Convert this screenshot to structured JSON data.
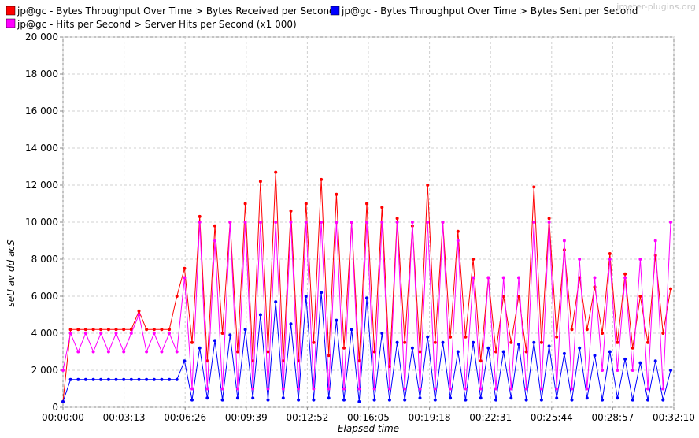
{
  "watermark": "jmeter-plugins.org",
  "chart_data": {
    "type": "line",
    "xlabel": "Elapsed time",
    "ylabel": "seU av dd acS",
    "ylim": [
      0,
      20000
    ],
    "xlim": [
      "00:00:00",
      "00:32:10"
    ],
    "grid": true,
    "legend_position": "top",
    "y_ticks": [
      "0",
      "2 000",
      "4 000",
      "6 000",
      "8 000",
      "10 000",
      "12 000",
      "14 000",
      "16 000",
      "18 000",
      "20 000"
    ],
    "x_ticks": [
      "00:00:00",
      "00:03:13",
      "00:06:26",
      "00:09:39",
      "00:12:52",
      "00:16:05",
      "00:19:18",
      "00:22:31",
      "00:25:44",
      "00:28:57",
      "00:32:10"
    ],
    "x_unit": "elapsed seconds",
    "series": [
      {
        "name": "jp@gc - Bytes Throughput Over Time > Bytes Received per Second",
        "color": "#ff0000",
        "x": [
          0,
          24,
          48,
          72,
          96,
          120,
          144,
          168,
          192,
          216,
          240,
          264,
          288,
          312,
          336,
          360,
          384,
          408,
          432,
          456,
          480,
          504,
          528,
          552,
          576,
          600,
          624,
          648,
          672,
          696,
          720,
          744,
          768,
          792,
          816,
          840,
          864,
          888,
          912,
          936,
          960,
          984,
          1008,
          1032,
          1056,
          1080,
          1104,
          1128,
          1152,
          1176,
          1200,
          1224,
          1248,
          1272,
          1296,
          1320,
          1344,
          1368,
          1392,
          1416,
          1440,
          1464,
          1488,
          1512,
          1536,
          1560,
          1584,
          1608,
          1632,
          1656,
          1680,
          1704,
          1728,
          1752,
          1776,
          1800,
          1824,
          1848,
          1872,
          1896,
          1920
        ],
        "values": [
          300,
          4200,
          4200,
          4200,
          4200,
          4200,
          4200,
          4200,
          4200,
          4200,
          5200,
          4200,
          4200,
          4200,
          4200,
          6000,
          7500,
          3500,
          10300,
          2500,
          9800,
          4000,
          10000,
          3000,
          11000,
          2500,
          12200,
          3000,
          12700,
          2500,
          10600,
          2500,
          11000,
          3500,
          12300,
          2800,
          11500,
          3200,
          10000,
          2500,
          11000,
          3000,
          10800,
          2200,
          10200,
          3500,
          9800,
          3000,
          12000,
          3500,
          10000,
          3800,
          9500,
          3800,
          8000,
          2500,
          7000,
          3000,
          6000,
          3500,
          6000,
          3000,
          11900,
          3500,
          10200,
          3800,
          8500,
          4200,
          7000,
          4200,
          6500,
          4000,
          8300,
          3500,
          7200,
          3200,
          6000,
          3500,
          8200,
          4000,
          6400
        ]
      },
      {
        "name": "jp@gc - Bytes Throughput Over Time > Bytes Sent per Second",
        "color": "#0000ff",
        "x": [
          0,
          24,
          48,
          72,
          96,
          120,
          144,
          168,
          192,
          216,
          240,
          264,
          288,
          312,
          336,
          360,
          384,
          408,
          432,
          456,
          480,
          504,
          528,
          552,
          576,
          600,
          624,
          648,
          672,
          696,
          720,
          744,
          768,
          792,
          816,
          840,
          864,
          888,
          912,
          936,
          960,
          984,
          1008,
          1032,
          1056,
          1080,
          1104,
          1128,
          1152,
          1176,
          1200,
          1224,
          1248,
          1272,
          1296,
          1320,
          1344,
          1368,
          1392,
          1416,
          1440,
          1464,
          1488,
          1512,
          1536,
          1560,
          1584,
          1608,
          1632,
          1656,
          1680,
          1704,
          1728,
          1752,
          1776,
          1800,
          1824,
          1848,
          1872,
          1896,
          1920
        ],
        "values": [
          300,
          1500,
          1500,
          1500,
          1500,
          1500,
          1500,
          1500,
          1500,
          1500,
          1500,
          1500,
          1500,
          1500,
          1500,
          1500,
          2500,
          400,
          3200,
          500,
          3600,
          400,
          3900,
          500,
          4200,
          500,
          5000,
          400,
          5700,
          500,
          4500,
          400,
          6000,
          400,
          6200,
          500,
          4700,
          400,
          4200,
          300,
          5900,
          400,
          4000,
          400,
          3500,
          400,
          3200,
          500,
          3800,
          400,
          3500,
          500,
          3000,
          400,
          3500,
          500,
          3200,
          400,
          3000,
          500,
          3400,
          400,
          3500,
          400,
          3300,
          500,
          2900,
          400,
          3200,
          500,
          2800,
          400,
          3000,
          500,
          2600,
          400,
          2400,
          400,
          2500,
          400,
          2000
        ]
      },
      {
        "name": "jp@gc - Hits per Second > Server Hits per Second (x1 000)",
        "color": "#ff00ff",
        "x": [
          0,
          24,
          48,
          72,
          96,
          120,
          144,
          168,
          192,
          216,
          240,
          264,
          288,
          312,
          336,
          360,
          384,
          408,
          432,
          456,
          480,
          504,
          528,
          552,
          576,
          600,
          624,
          648,
          672,
          696,
          720,
          744,
          768,
          792,
          816,
          840,
          864,
          888,
          912,
          936,
          960,
          984,
          1008,
          1032,
          1056,
          1080,
          1104,
          1128,
          1152,
          1176,
          1200,
          1224,
          1248,
          1272,
          1296,
          1320,
          1344,
          1368,
          1392,
          1416,
          1440,
          1464,
          1488,
          1512,
          1536,
          1560,
          1584,
          1608,
          1632,
          1656,
          1680,
          1704,
          1728,
          1752,
          1776,
          1800,
          1824,
          1848,
          1872,
          1896,
          1920
        ],
        "values": [
          2000,
          4000,
          3000,
          4000,
          3000,
          4000,
          3000,
          4000,
          3000,
          4000,
          5000,
          3000,
          4000,
          3000,
          4000,
          3000,
          7000,
          1000,
          10000,
          1000,
          9000,
          1000,
          10000,
          1000,
          10000,
          1000,
          10000,
          1000,
          10000,
          1000,
          10000,
          1000,
          10000,
          1000,
          10000,
          1000,
          10000,
          1000,
          10000,
          1000,
          10000,
          1000,
          10000,
          1000,
          10000,
          1000,
          10000,
          1000,
          10000,
          1000,
          10000,
          1000,
          9000,
          1000,
          7000,
          1000,
          7000,
          1000,
          7000,
          1000,
          7000,
          1000,
          10000,
          1000,
          10000,
          1000,
          9000,
          1000,
          8000,
          1000,
          7000,
          2000,
          8000,
          2000,
          7000,
          2000,
          8000,
          1000,
          9000,
          1000,
          10000
        ]
      }
    ]
  }
}
